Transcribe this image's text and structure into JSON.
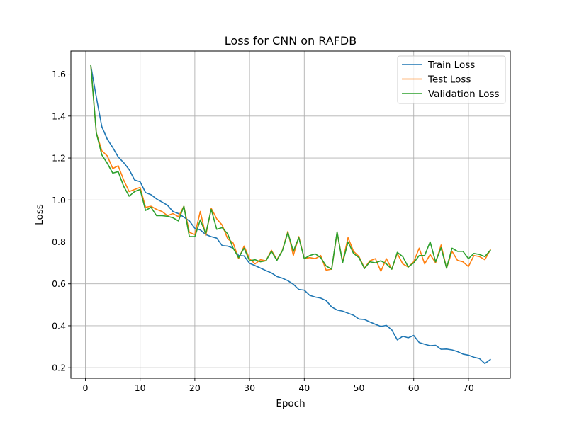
{
  "chart_data": {
    "type": "line",
    "title": "Loss for CNN on RAFDB",
    "xlabel": "Epoch",
    "ylabel": "Loss",
    "xlim": [
      -2.65,
      77.65
    ],
    "ylim": [
      0.15,
      1.71
    ],
    "xticks": [
      0,
      10,
      20,
      30,
      40,
      50,
      60,
      70
    ],
    "yticks": [
      0.2,
      0.4,
      0.6,
      0.8,
      1.0,
      1.2,
      1.4,
      1.6
    ],
    "ytick_labels": [
      "0.2",
      "0.4",
      "0.6",
      "0.8",
      "1.0",
      "1.2",
      "1.4",
      "1.6"
    ],
    "grid": true,
    "legend_position": "top-right",
    "x": [
      1,
      2,
      3,
      4,
      5,
      6,
      7,
      8,
      9,
      10,
      11,
      12,
      13,
      14,
      15,
      16,
      17,
      18,
      19,
      20,
      21,
      22,
      23,
      24,
      25,
      26,
      27,
      28,
      29,
      30,
      31,
      32,
      33,
      34,
      35,
      36,
      37,
      38,
      39,
      40,
      41,
      42,
      43,
      44,
      45,
      46,
      47,
      48,
      49,
      50,
      51,
      52,
      53,
      54,
      55,
      56,
      57,
      58,
      59,
      60,
      61,
      62,
      63,
      64,
      65,
      66,
      67,
      68,
      69,
      70,
      71,
      72,
      73,
      74
    ],
    "series": [
      {
        "name": "Train Loss",
        "color": "#1f77b4",
        "values": [
          1.64,
          1.49,
          1.35,
          1.29,
          1.25,
          1.205,
          1.178,
          1.145,
          1.095,
          1.087,
          1.035,
          1.025,
          1.005,
          0.99,
          0.975,
          0.945,
          0.935,
          0.918,
          0.9,
          0.865,
          0.857,
          0.835,
          0.825,
          0.818,
          0.782,
          0.78,
          0.77,
          0.735,
          0.733,
          0.698,
          0.687,
          0.675,
          0.663,
          0.652,
          0.635,
          0.627,
          0.615,
          0.598,
          0.573,
          0.57,
          0.545,
          0.537,
          0.532,
          0.52,
          0.49,
          0.475,
          0.47,
          0.46,
          0.45,
          0.432,
          0.43,
          0.418,
          0.407,
          0.397,
          0.402,
          0.38,
          0.333,
          0.35,
          0.343,
          0.354,
          0.32,
          0.312,
          0.305,
          0.307,
          0.288,
          0.289,
          0.285,
          0.277,
          0.265,
          0.26,
          0.25,
          0.244,
          0.22,
          0.239
        ]
      },
      {
        "name": "Test Loss",
        "color": "#ff7f0e",
        "values": [
          1.64,
          1.32,
          1.235,
          1.21,
          1.15,
          1.163,
          1.095,
          1.04,
          1.05,
          1.06,
          0.965,
          0.97,
          0.955,
          0.945,
          0.925,
          0.935,
          0.92,
          0.97,
          0.845,
          0.835,
          0.945,
          0.83,
          0.96,
          0.91,
          0.88,
          0.815,
          0.795,
          0.72,
          0.78,
          0.72,
          0.695,
          0.715,
          0.71,
          0.76,
          0.715,
          0.76,
          0.85,
          0.735,
          0.825,
          0.72,
          0.725,
          0.72,
          0.735,
          0.665,
          0.67,
          0.845,
          0.705,
          0.82,
          0.755,
          0.73,
          0.675,
          0.71,
          0.72,
          0.66,
          0.72,
          0.67,
          0.745,
          0.695,
          0.68,
          0.705,
          0.77,
          0.695,
          0.74,
          0.7,
          0.785,
          0.675,
          0.755,
          0.712,
          0.705,
          0.682,
          0.735,
          0.73,
          0.715,
          0.762
        ]
      },
      {
        "name": "Validation Loss",
        "color": "#2ca02c",
        "values": [
          1.64,
          1.32,
          1.215,
          1.175,
          1.128,
          1.135,
          1.065,
          1.018,
          1.04,
          1.05,
          0.95,
          0.965,
          0.925,
          0.925,
          0.922,
          0.915,
          0.9,
          0.97,
          0.825,
          0.825,
          0.905,
          0.84,
          0.955,
          0.86,
          0.868,
          0.838,
          0.77,
          0.725,
          0.77,
          0.71,
          0.715,
          0.705,
          0.71,
          0.755,
          0.712,
          0.758,
          0.845,
          0.755,
          0.82,
          0.72,
          0.735,
          0.743,
          0.725,
          0.685,
          0.67,
          0.848,
          0.7,
          0.8,
          0.745,
          0.725,
          0.673,
          0.705,
          0.7,
          0.71,
          0.695,
          0.67,
          0.75,
          0.73,
          0.68,
          0.7,
          0.735,
          0.735,
          0.8,
          0.705,
          0.772,
          0.675,
          0.77,
          0.755,
          0.755,
          0.72,
          0.745,
          0.74,
          0.73,
          0.76
        ]
      }
    ]
  }
}
